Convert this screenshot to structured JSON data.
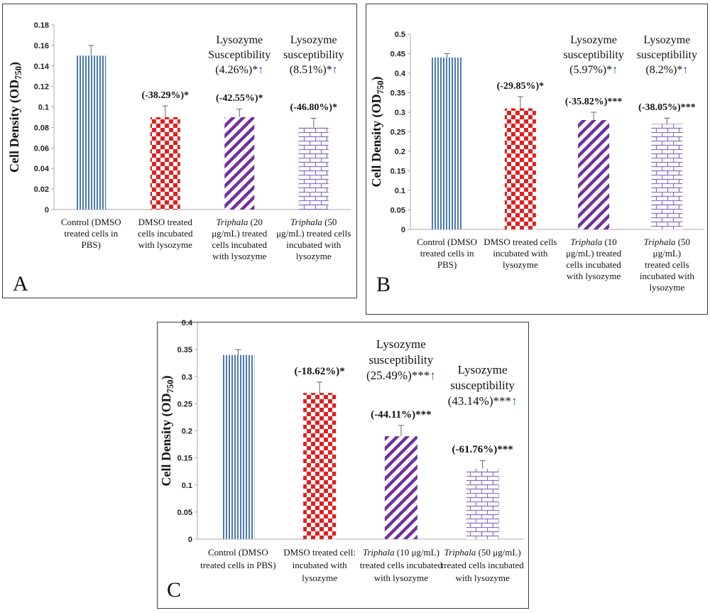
{
  "chart_data": [
    {
      "type": "bar",
      "panel_label": "A",
      "ylabel_main": "Cell Density (OD",
      "ylabel_sub": "750",
      "ylabel_close": ")",
      "ylim": [
        0,
        0.18
      ],
      "yticks": [
        "0",
        "0.02",
        "0.04",
        "0.06",
        "0.08",
        "0.1",
        "0.12",
        "0.14",
        "0.16",
        "0.18"
      ],
      "grid": false,
      "categories": [
        {
          "italic": "",
          "lines": [
            "Control (DMSO",
            "treated cells in",
            "PBS)"
          ]
        },
        {
          "italic": "",
          "lines": [
            "DMSO treated",
            "cells incubated",
            "with lysozyme"
          ]
        },
        {
          "italic": "Triphala",
          "lines": [
            " (20",
            "μg/mL) treated",
            "cells incubated",
            "with lysozyme"
          ]
        },
        {
          "italic": "Triphala",
          "lines": [
            " (50",
            "μg/mL) treated cells",
            "incubated with",
            "lysozyme"
          ]
        }
      ],
      "values": [
        0.15,
        0.09,
        0.09,
        0.08
      ],
      "errors": [
        0.01,
        0.011,
        0.008,
        0.009
      ],
      "patterns": [
        "vstripe",
        "checker",
        "diag",
        "brick"
      ],
      "bar_annotations": [
        "",
        "(-38.29%)*",
        "(-42.55%)*",
        "(-46.80%)*"
      ],
      "susceptibility": [
        {
          "bar": 2,
          "lines": [
            "Lysozyme",
            "Susceptibility"
          ],
          "value": "(4.26%)*",
          "arrow": "↑"
        },
        {
          "bar": 3,
          "lines": [
            "Lysozyme",
            "susceptibility"
          ],
          "value": "(8.51%)*",
          "arrow": "↑"
        }
      ]
    },
    {
      "type": "bar",
      "panel_label": "B",
      "ylabel_main": "Cell Density (OD",
      "ylabel_sub": "750",
      "ylabel_close": ")",
      "ylim": [
        0,
        0.5
      ],
      "yticks": [
        "0",
        "0.05",
        "0.1",
        "0.15",
        "0.2",
        "0.25",
        "0.3",
        "0.35",
        "0.4",
        "0.45",
        "0.5"
      ],
      "grid": false,
      "categories": [
        {
          "italic": "",
          "lines": [
            "Control (DMSO",
            "treated cells in",
            "PBS)"
          ]
        },
        {
          "italic": "",
          "lines": [
            "DMSO treated cells",
            "incubated with",
            "lysozyme"
          ]
        },
        {
          "italic": "Triphala",
          "lines": [
            " (10",
            "μg/mL) treated",
            "cells incubated",
            "with lysozyme"
          ]
        },
        {
          "italic": "Triphala",
          "lines": [
            " (50 μg/mL)",
            "treated cells",
            "incubated with",
            "lysozyme"
          ]
        }
      ],
      "values": [
        0.44,
        0.31,
        0.28,
        0.27
      ],
      "errors": [
        0.01,
        0.03,
        0.02,
        0.015
      ],
      "patterns": [
        "vstripe",
        "checker",
        "diag",
        "brick"
      ],
      "bar_annotations": [
        "",
        "(-29.85%)*",
        "(-35.82%)***",
        "(-38.05%)***"
      ],
      "susceptibility": [
        {
          "bar": 2,
          "lines": [
            "Lysozyme",
            "susceptibility"
          ],
          "value": "(5.97%)*",
          "arrow": "↑"
        },
        {
          "bar": 3,
          "lines": [
            "Lysozyme",
            "susceptibility"
          ],
          "value": "(8.2%)*",
          "arrow": "↑"
        }
      ]
    },
    {
      "type": "bar",
      "panel_label": "C",
      "ylabel_main": "Cell Density (OD",
      "ylabel_sub": "750",
      "ylabel_close": ")",
      "ylim": [
        0,
        0.4
      ],
      "yticks": [
        "0",
        "0.05",
        "0.1",
        "0.15",
        "0.2",
        "0.25",
        "0.3",
        "0.35",
        "0.4"
      ],
      "grid": false,
      "categories": [
        {
          "italic": "",
          "lines": [
            "Control (DMSO",
            "treated cells in PBS)"
          ]
        },
        {
          "italic": "",
          "lines": [
            "DMSO treated cell:",
            "incubated with",
            "lysozyme"
          ]
        },
        {
          "italic": "Triphala",
          "lines": [
            " (10 μg/mL)",
            "treated cells incubated",
            "with lysozyme"
          ]
        },
        {
          "italic": "Triphala",
          "lines": [
            " (50 μg/mL)",
            "treated cells incubated",
            "with lysozyme"
          ]
        }
      ],
      "values": [
        0.34,
        0.27,
        0.19,
        0.13
      ],
      "errors": [
        0.01,
        0.02,
        0.02,
        0.015
      ],
      "patterns": [
        "vstripe",
        "checker",
        "diag",
        "brick"
      ],
      "bar_annotations": [
        "",
        "(-18.62%)*",
        "(-44.11%)***",
        "(-61.76%)***"
      ],
      "susceptibility": [
        {
          "bar": 2,
          "lines": [
            "Lysozyme",
            "susceptibility"
          ],
          "value": "(25.49%)***",
          "arrow": "↑"
        },
        {
          "bar": 3,
          "lines": [
            "Lysozyme",
            "susceptibility"
          ],
          "value": "(43.14%)***",
          "arrow": "↑"
        }
      ]
    }
  ]
}
